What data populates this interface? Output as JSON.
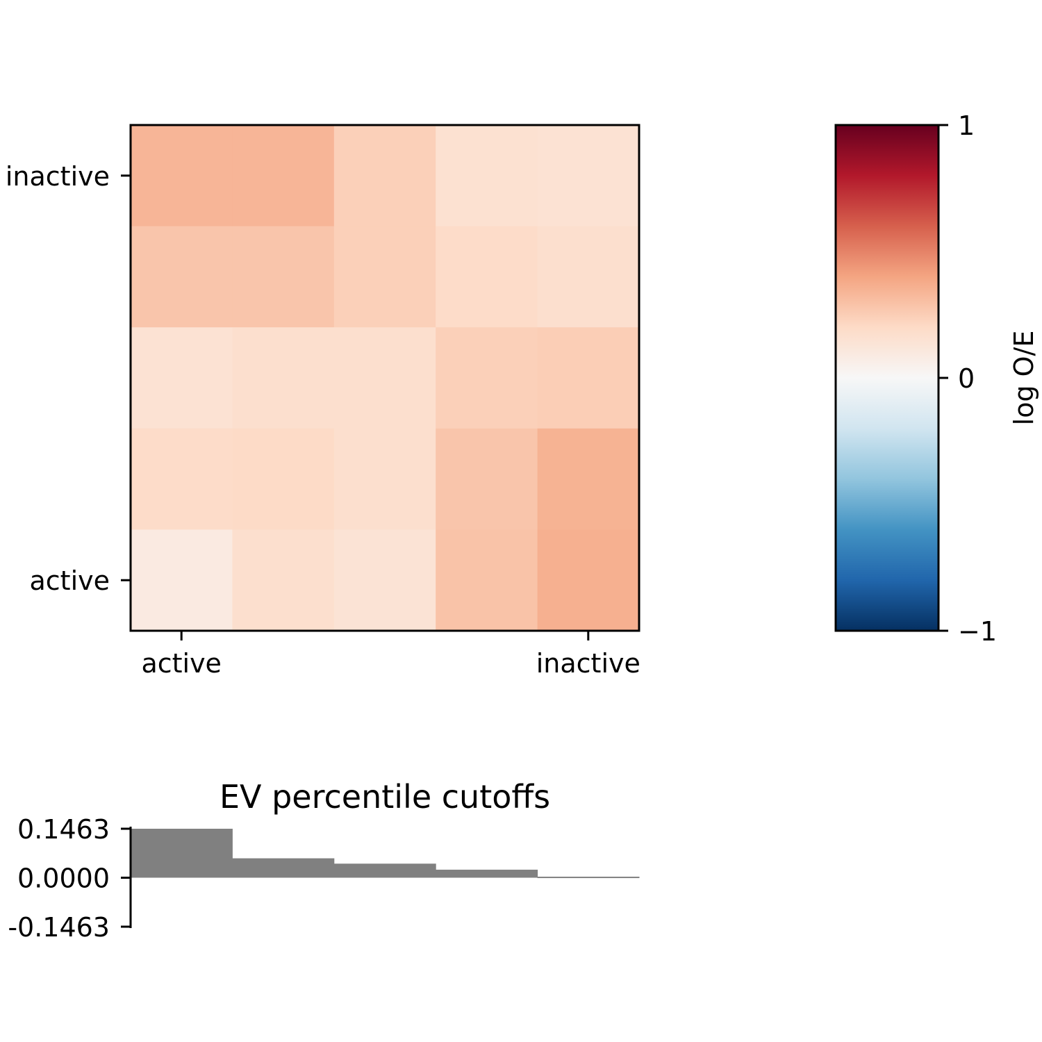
{
  "chart_data": [
    {
      "type": "heatmap",
      "rows": 5,
      "cols": 5,
      "values": [
        [
          0.34,
          0.34,
          0.24,
          0.16,
          0.15
        ],
        [
          0.28,
          0.28,
          0.24,
          0.19,
          0.17
        ],
        [
          0.15,
          0.17,
          0.17,
          0.24,
          0.25
        ],
        [
          0.19,
          0.2,
          0.17,
          0.28,
          0.35
        ],
        [
          0.09,
          0.17,
          0.14,
          0.29,
          0.36
        ]
      ],
      "x_ticks": [
        {
          "col": 0,
          "label": "active"
        },
        {
          "col": 4,
          "label": "inactive"
        }
      ],
      "y_ticks": [
        {
          "row": 0,
          "label": "inactive"
        },
        {
          "row": 4,
          "label": "active"
        }
      ],
      "colormap": "RdBu_r",
      "vmin": -1,
      "vmax": 1
    },
    {
      "type": "colorbar",
      "label": "log O/E",
      "range": [
        -1,
        1
      ],
      "ticks": [
        {
          "value": 1,
          "label": "1"
        },
        {
          "value": 0,
          "label": "0"
        },
        {
          "value": -1,
          "label": "−1"
        }
      ],
      "colormap_stops": [
        "#053061",
        "#2166ac",
        "#4393c3",
        "#92c5de",
        "#d1e5f0",
        "#f7f7f7",
        "#fddbc7",
        "#f4a582",
        "#d6604d",
        "#b2182b",
        "#67001f"
      ]
    },
    {
      "type": "bar",
      "title": "EV percentile cutoffs",
      "values": [
        0.1463,
        0.058,
        0.042,
        0.024,
        0.003
      ],
      "ylim": [
        -0.1463,
        0.1463
      ],
      "y_ticks": [
        {
          "value": 0.1463,
          "label": "0.1463"
        },
        {
          "value": 0,
          "label": "0.0000"
        },
        {
          "value": -0.1463,
          "label": "-0.1463"
        }
      ],
      "bar_color": "#808080"
    }
  ]
}
